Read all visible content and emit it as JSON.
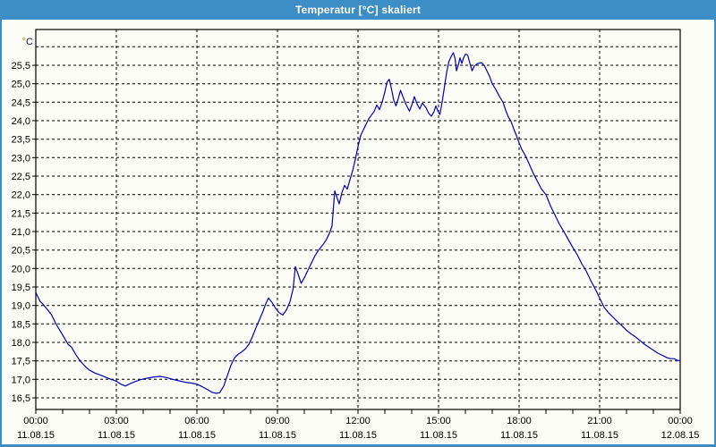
{
  "window": {
    "title": "Temperatur [°C] skaliert",
    "titlebar_color": "#3d8ec6",
    "border_color": "#3d8ec6",
    "background_color": "#fdfdf7"
  },
  "chart_data": {
    "type": "line",
    "title": "Temperatur [°C] skaliert",
    "line_color": "#0000b2",
    "grid": "dashed-black",
    "legend": "none",
    "y_axis": {
      "unit_label_degree": "°",
      "unit_label_letter": "C",
      "unit_degree_color": "#dd7f00",
      "unit_letter_color": "#1a1a3a",
      "tick_values": [
        25.5,
        25.0,
        24.5,
        24.0,
        23.5,
        23.0,
        22.5,
        22.0,
        21.5,
        21.0,
        20.5,
        20.0,
        19.5,
        19.0,
        18.5,
        18.0,
        17.5,
        17.0,
        16.5
      ],
      "tick_labels": [
        "25,5",
        "25,0",
        "24,5",
        "24,0",
        "23,5",
        "23,0",
        "22,5",
        "22,0",
        "21,5",
        "21,0",
        "20,5",
        "20,0",
        "19,5",
        "19,0",
        "18,5",
        "18,0",
        "17,5",
        "17,0",
        "16,5"
      ],
      "unlabeled_grid_top": 26.0,
      "range": [
        16.19,
        26.45
      ],
      "gridline_step": 0.5
    },
    "x_axis": {
      "major_tick_hours": [
        0,
        3,
        6,
        9,
        12,
        15,
        18,
        21,
        24
      ],
      "minor_tick_interval_hours": 1,
      "range_hours": [
        0,
        24
      ],
      "labels": [
        {
          "time": "00:00",
          "date": "11.08.15"
        },
        {
          "time": "03:00",
          "date": "11.08.15"
        },
        {
          "time": "06:00",
          "date": "11.08.15"
        },
        {
          "time": "09:00",
          "date": "11.08.15"
        },
        {
          "time": "12:00",
          "date": "11.08.15"
        },
        {
          "time": "15:00",
          "date": "11.08.15"
        },
        {
          "time": "18:00",
          "date": "11.08.15"
        },
        {
          "time": "21:00",
          "date": "11.08.15"
        },
        {
          "time": "00:00",
          "date": "12.08.15"
        }
      ]
    },
    "points_minutes_temp": [
      [
        0,
        19.35
      ],
      [
        10,
        19.1
      ],
      [
        15,
        19.05
      ],
      [
        25,
        18.9
      ],
      [
        35,
        18.75
      ],
      [
        45,
        18.5
      ],
      [
        55,
        18.3
      ],
      [
        65,
        18.1
      ],
      [
        72,
        17.95
      ],
      [
        80,
        17.87
      ],
      [
        88,
        17.7
      ],
      [
        96,
        17.55
      ],
      [
        105,
        17.42
      ],
      [
        112,
        17.33
      ],
      [
        120,
        17.25
      ],
      [
        132,
        17.17
      ],
      [
        144,
        17.12
      ],
      [
        156,
        17.06
      ],
      [
        168,
        17.0
      ],
      [
        180,
        16.95
      ],
      [
        190,
        16.87
      ],
      [
        200,
        16.82
      ],
      [
        210,
        16.88
      ],
      [
        222,
        16.94
      ],
      [
        234,
        16.99
      ],
      [
        248,
        17.03
      ],
      [
        262,
        17.06
      ],
      [
        278,
        17.08
      ],
      [
        292,
        17.05
      ],
      [
        306,
        17.0
      ],
      [
        320,
        16.96
      ],
      [
        334,
        16.92
      ],
      [
        348,
        16.9
      ],
      [
        360,
        16.87
      ],
      [
        372,
        16.8
      ],
      [
        384,
        16.72
      ],
      [
        394,
        16.65
      ],
      [
        403,
        16.62
      ],
      [
        411,
        16.64
      ],
      [
        420,
        16.82
      ],
      [
        428,
        17.1
      ],
      [
        436,
        17.38
      ],
      [
        444,
        17.58
      ],
      [
        452,
        17.68
      ],
      [
        460,
        17.74
      ],
      [
        468,
        17.82
      ],
      [
        476,
        17.95
      ],
      [
        484,
        18.15
      ],
      [
        492,
        18.4
      ],
      [
        500,
        18.62
      ],
      [
        508,
        18.85
      ],
      [
        514,
        19.05
      ],
      [
        520,
        19.2
      ],
      [
        528,
        19.08
      ],
      [
        536,
        18.92
      ],
      [
        544,
        18.8
      ],
      [
        552,
        18.74
      ],
      [
        560,
        18.88
      ],
      [
        568,
        19.1
      ],
      [
        575,
        19.45
      ],
      [
        580,
        20.05
      ],
      [
        586,
        19.85
      ],
      [
        593,
        19.6
      ],
      [
        600,
        19.75
      ],
      [
        608,
        19.95
      ],
      [
        616,
        20.15
      ],
      [
        624,
        20.35
      ],
      [
        632,
        20.5
      ],
      [
        640,
        20.62
      ],
      [
        648,
        20.75
      ],
      [
        656,
        20.95
      ],
      [
        662,
        21.15
      ],
      [
        668,
        22.1
      ],
      [
        673,
        21.92
      ],
      [
        678,
        21.75
      ],
      [
        684,
        22.05
      ],
      [
        690,
        22.25
      ],
      [
        696,
        22.15
      ],
      [
        702,
        22.4
      ],
      [
        708,
        22.65
      ],
      [
        714,
        22.95
      ],
      [
        720,
        23.3
      ],
      [
        726,
        23.6
      ],
      [
        732,
        23.75
      ],
      [
        738,
        23.9
      ],
      [
        744,
        24.05
      ],
      [
        750,
        24.15
      ],
      [
        756,
        24.25
      ],
      [
        762,
        24.42
      ],
      [
        768,
        24.3
      ],
      [
        774,
        24.5
      ],
      [
        780,
        24.78
      ],
      [
        785,
        25.05
      ],
      [
        790,
        25.12
      ],
      [
        795,
        24.85
      ],
      [
        800,
        24.55
      ],
      [
        805,
        24.4
      ],
      [
        810,
        24.6
      ],
      [
        815,
        24.82
      ],
      [
        822,
        24.6
      ],
      [
        828,
        24.42
      ],
      [
        835,
        24.26
      ],
      [
        841,
        24.45
      ],
      [
        846,
        24.65
      ],
      [
        852,
        24.45
      ],
      [
        858,
        24.32
      ],
      [
        864,
        24.48
      ],
      [
        872,
        24.35
      ],
      [
        878,
        24.2
      ],
      [
        884,
        24.12
      ],
      [
        890,
        24.25
      ],
      [
        894,
        24.4
      ],
      [
        899,
        24.25
      ],
      [
        903,
        24.17
      ],
      [
        908,
        24.5
      ],
      [
        913,
        24.9
      ],
      [
        918,
        25.3
      ],
      [
        923,
        25.6
      ],
      [
        928,
        25.73
      ],
      [
        933,
        25.84
      ],
      [
        937,
        25.68
      ],
      [
        940,
        25.35
      ],
      [
        944,
        25.5
      ],
      [
        948,
        25.7
      ],
      [
        952,
        25.55
      ],
      [
        956,
        25.7
      ],
      [
        960,
        25.8
      ],
      [
        965,
        25.78
      ],
      [
        970,
        25.55
      ],
      [
        975,
        25.35
      ],
      [
        980,
        25.48
      ],
      [
        988,
        25.55
      ],
      [
        996,
        25.57
      ],
      [
        1002,
        25.5
      ],
      [
        1008,
        25.35
      ],
      [
        1014,
        25.2
      ],
      [
        1020,
        25.0
      ],
      [
        1026,
        24.88
      ],
      [
        1032,
        24.75
      ],
      [
        1038,
        24.62
      ],
      [
        1044,
        24.5
      ],
      [
        1050,
        24.28
      ],
      [
        1056,
        24.1
      ],
      [
        1062,
        23.98
      ],
      [
        1068,
        23.78
      ],
      [
        1074,
        23.6
      ],
      [
        1080,
        23.4
      ],
      [
        1086,
        23.22
      ],
      [
        1092,
        23.1
      ],
      [
        1100,
        22.9
      ],
      [
        1110,
        22.62
      ],
      [
        1120,
        22.38
      ],
      [
        1130,
        22.15
      ],
      [
        1140,
        22.0
      ],
      [
        1150,
        21.7
      ],
      [
        1160,
        21.45
      ],
      [
        1170,
        21.2
      ],
      [
        1180,
        21.0
      ],
      [
        1190,
        20.78
      ],
      [
        1200,
        20.57
      ],
      [
        1210,
        20.37
      ],
      [
        1220,
        20.13
      ],
      [
        1230,
        19.93
      ],
      [
        1240,
        19.68
      ],
      [
        1250,
        19.45
      ],
      [
        1260,
        19.2
      ],
      [
        1270,
        18.95
      ],
      [
        1280,
        18.8
      ],
      [
        1290,
        18.68
      ],
      [
        1300,
        18.56
      ],
      [
        1310,
        18.45
      ],
      [
        1320,
        18.33
      ],
      [
        1330,
        18.23
      ],
      [
        1340,
        18.15
      ],
      [
        1350,
        18.05
      ],
      [
        1360,
        17.95
      ],
      [
        1370,
        17.87
      ],
      [
        1380,
        17.79
      ],
      [
        1390,
        17.71
      ],
      [
        1400,
        17.65
      ],
      [
        1410,
        17.59
      ],
      [
        1418,
        17.56
      ],
      [
        1426,
        17.56
      ],
      [
        1433,
        17.52
      ],
      [
        1440,
        17.5
      ]
    ]
  }
}
